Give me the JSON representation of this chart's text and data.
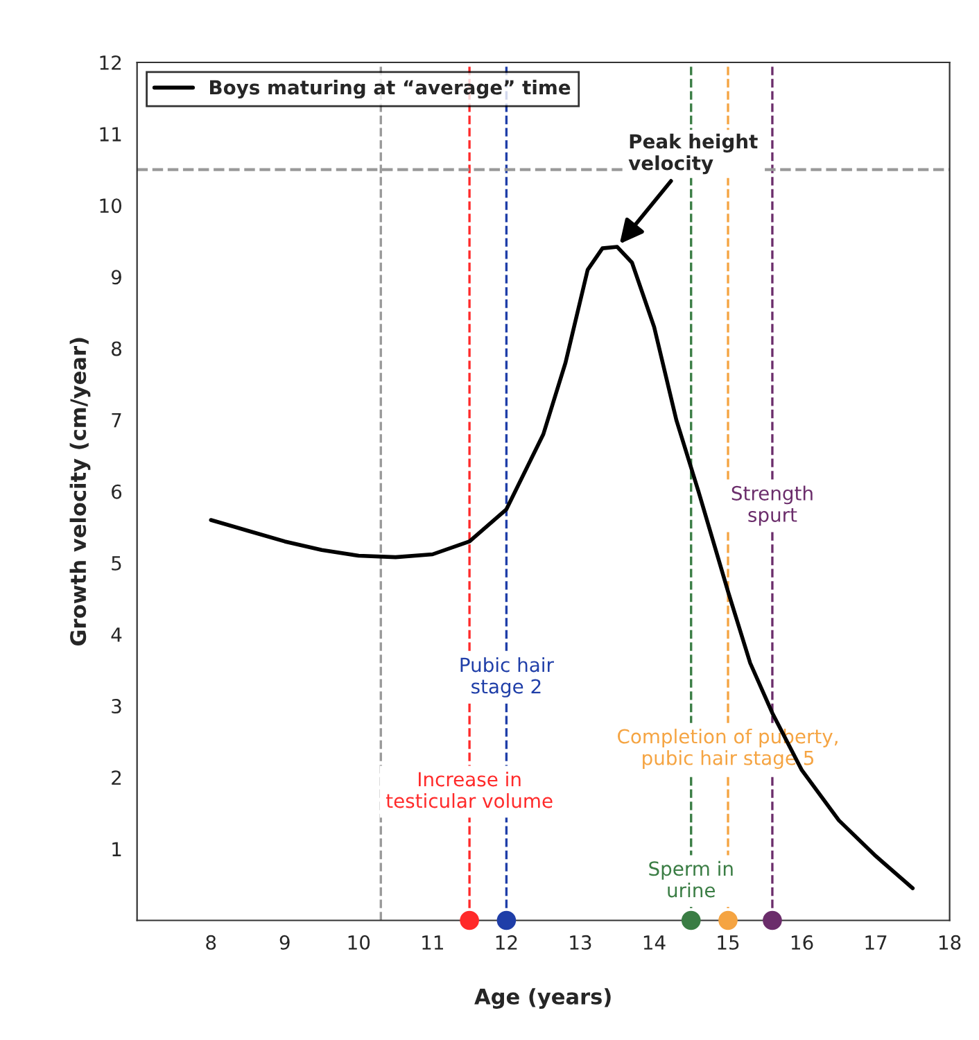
{
  "chart_data": {
    "type": "line",
    "xlabel": "Age (years)",
    "ylabel": "Growth velocity (cm/year)",
    "xlim": [
      7,
      18
    ],
    "xticks": [
      8,
      9,
      10,
      11,
      12,
      13,
      14,
      15,
      16,
      17,
      18
    ],
    "ylim": [
      0,
      12
    ],
    "yticks": [
      1,
      2,
      3,
      4,
      5,
      6,
      7,
      8,
      9,
      10,
      11,
      12
    ],
    "grid": false,
    "legend": "top left",
    "line_style": "solid",
    "series": [
      {
        "name": "Boys maturing at “average” time",
        "color": "#000000",
        "x": [
          8,
          8.5,
          9,
          9.5,
          10,
          10.5,
          11,
          11.5,
          12,
          12.5,
          12.8,
          13.1,
          13.3,
          13.5,
          13.7,
          14,
          14.3,
          14.6,
          15,
          15.3,
          15.6,
          16,
          16.5,
          17,
          17.5
        ],
        "values": [
          5.6,
          5.45,
          5.3,
          5.18,
          5.1,
          5.08,
          5.12,
          5.3,
          5.75,
          6.8,
          7.8,
          9.1,
          9.4,
          9.42,
          9.2,
          8.3,
          7.0,
          6.0,
          4.6,
          3.6,
          2.9,
          2.1,
          1.4,
          0.9,
          0.45
        ]
      },
      {
        "type": "scatter",
        "marker": "circle",
        "x": [
          11.5,
          12,
          14.5,
          15,
          15.6
        ],
        "values": [
          0,
          0,
          0,
          0,
          0
        ],
        "colors": [
          "#ff2a2a",
          "#1f3ea8",
          "#3a7d44",
          "#f5a442",
          "#6b2d6b"
        ]
      }
    ],
    "ref_lines": [
      {
        "axis": "x",
        "value": 11.5,
        "color": "#ff2a2a",
        "line_style": "dashed"
      },
      {
        "axis": "x",
        "value": 12,
        "color": "#1f3ea8",
        "line_style": "dashed"
      },
      {
        "axis": "x",
        "value": 14.5,
        "color": "#3a7d44",
        "line_style": "dashed"
      },
      {
        "axis": "x",
        "value": 15,
        "color": "#f5a442",
        "line_style": "dashed"
      },
      {
        "axis": "x",
        "value": 15.6,
        "color": "#6b2d6b",
        "line_style": "dashed"
      },
      {
        "axis": "x",
        "value": 10.3,
        "color": "#999999",
        "line_style": "dashed"
      },
      {
        "axis": "y",
        "value": 10.5,
        "color": "#999999",
        "line_style": "dashed"
      }
    ],
    "annotations": [
      {
        "text": "Peak height\nvelocity",
        "x": 13.5,
        "y": 9.42
      },
      {
        "text": "Increase in\ntesticular volume",
        "x": 11.5,
        "y": 1.8
      },
      {
        "text": "Pubic hair\nstage 2",
        "x": 12,
        "y": 3.4
      },
      {
        "text": "Sperm in\nurine",
        "x": 14.5,
        "y": 0.55
      },
      {
        "text": "Completion of puberty,\npubic hair stage 5",
        "x": 15,
        "y": 2.4
      },
      {
        "text": "Strength\nspurt",
        "x": 15.6,
        "y": 5.8
      }
    ]
  }
}
